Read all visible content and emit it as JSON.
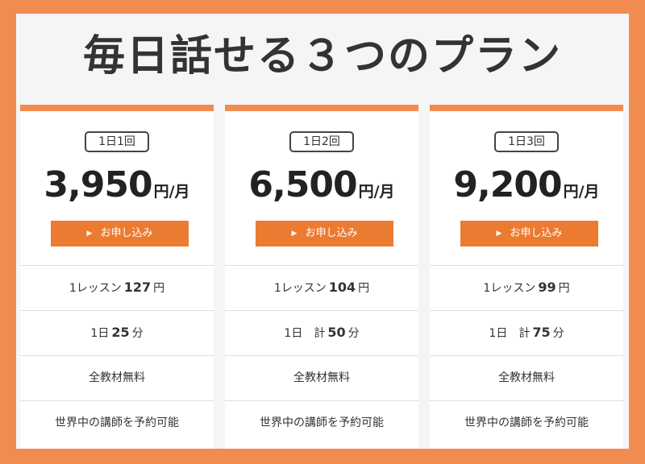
{
  "title": "毎日話せる３つのプラン",
  "button_label": "お申し込み",
  "plans": [
    {
      "badge": "1日1回",
      "price": "3,950",
      "unit": "円/月",
      "lesson": {
        "pre": "1レッスン",
        "num": "127",
        "post": "円"
      },
      "daily": {
        "pre": "1日",
        "num": "25",
        "post": "分"
      },
      "materials": "全教材無料",
      "teachers": "世界中の講師を予約可能"
    },
    {
      "badge": "1日2回",
      "price": "6,500",
      "unit": "円/月",
      "lesson": {
        "pre": "1レッスン",
        "num": "104",
        "post": "円"
      },
      "daily": {
        "pre": "1日　計",
        "num": "50",
        "post": "分"
      },
      "materials": "全教材無料",
      "teachers": "世界中の講師を予約可能"
    },
    {
      "badge": "1日3回",
      "price": "9,200",
      "unit": "円/月",
      "lesson": {
        "pre": "1レッスン",
        "num": "99",
        "post": "円"
      },
      "daily": {
        "pre": "1日　計",
        "num": "75",
        "post": "分"
      },
      "materials": "全教材無料",
      "teachers": "世界中の講師を予約可能"
    }
  ],
  "colors": {
    "frame": "#f08c50",
    "accent": "#ec7b32",
    "panel": "#f5f5f5"
  },
  "icons": {
    "button_arrow": "play-arrow-icon"
  }
}
